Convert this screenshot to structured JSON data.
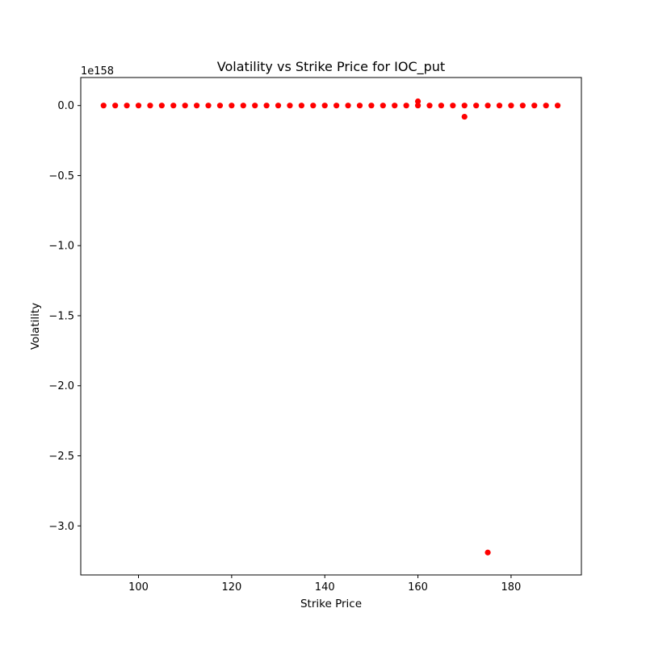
{
  "chart_data": {
    "type": "scatter",
    "title": "Volatility vs Strike Price for IOC_put",
    "xlabel": "Strike Price",
    "ylabel": "Volatility",
    "y_offset_text": "1e158",
    "xlim": [
      87.6,
      195.1
    ],
    "ylim": [
      -3.35,
      0.2
    ],
    "x_ticks": [
      100,
      120,
      140,
      160,
      180
    ],
    "x_tick_labels": [
      "100",
      "120",
      "140",
      "160",
      "180"
    ],
    "y_ticks": [
      0.0,
      -0.5,
      -1.0,
      -1.5,
      -2.0,
      -2.5,
      -3.0
    ],
    "y_tick_labels": [
      "0.0",
      "−0.5",
      "−1.0",
      "−1.5",
      "−2.0",
      "−2.5",
      "−3.0"
    ],
    "grid": false,
    "marker_color": "#ff0000",
    "points": [
      {
        "x": 92.5,
        "y": 0.0
      },
      {
        "x": 95,
        "y": 0.0
      },
      {
        "x": 97.5,
        "y": 0.0
      },
      {
        "x": 100,
        "y": 0.0
      },
      {
        "x": 102.5,
        "y": 0.0
      },
      {
        "x": 105,
        "y": 0.0
      },
      {
        "x": 107.5,
        "y": 0.0
      },
      {
        "x": 110,
        "y": 0.0
      },
      {
        "x": 112.5,
        "y": 0.0
      },
      {
        "x": 115,
        "y": 0.0
      },
      {
        "x": 117.5,
        "y": 0.0
      },
      {
        "x": 120,
        "y": 0.0
      },
      {
        "x": 122.5,
        "y": 0.0
      },
      {
        "x": 125,
        "y": 0.0
      },
      {
        "x": 127.5,
        "y": 0.0
      },
      {
        "x": 130,
        "y": 0.0
      },
      {
        "x": 132.5,
        "y": 0.0
      },
      {
        "x": 135,
        "y": 0.0
      },
      {
        "x": 137.5,
        "y": 0.0
      },
      {
        "x": 140,
        "y": 0.0
      },
      {
        "x": 142.5,
        "y": 0.0
      },
      {
        "x": 145,
        "y": 0.0
      },
      {
        "x": 147.5,
        "y": 0.0
      },
      {
        "x": 150,
        "y": 0.0
      },
      {
        "x": 152.5,
        "y": 0.0
      },
      {
        "x": 155,
        "y": 0.0
      },
      {
        "x": 157.5,
        "y": 0.0
      },
      {
        "x": 160,
        "y": 0.0
      },
      {
        "x": 160,
        "y": 0.03
      },
      {
        "x": 162.5,
        "y": 0.0
      },
      {
        "x": 165,
        "y": 0.0
      },
      {
        "x": 167.5,
        "y": 0.0
      },
      {
        "x": 170,
        "y": 0.0
      },
      {
        "x": 170,
        "y": -0.08
      },
      {
        "x": 172.5,
        "y": 0.0
      },
      {
        "x": 175,
        "y": 0.0
      },
      {
        "x": 175,
        "y": -3.19
      },
      {
        "x": 177.5,
        "y": 0.0
      },
      {
        "x": 180,
        "y": 0.0
      },
      {
        "x": 182.5,
        "y": 0.0
      },
      {
        "x": 185,
        "y": 0.0
      },
      {
        "x": 187.5,
        "y": 0.0
      },
      {
        "x": 190,
        "y": 0.0
      }
    ]
  }
}
